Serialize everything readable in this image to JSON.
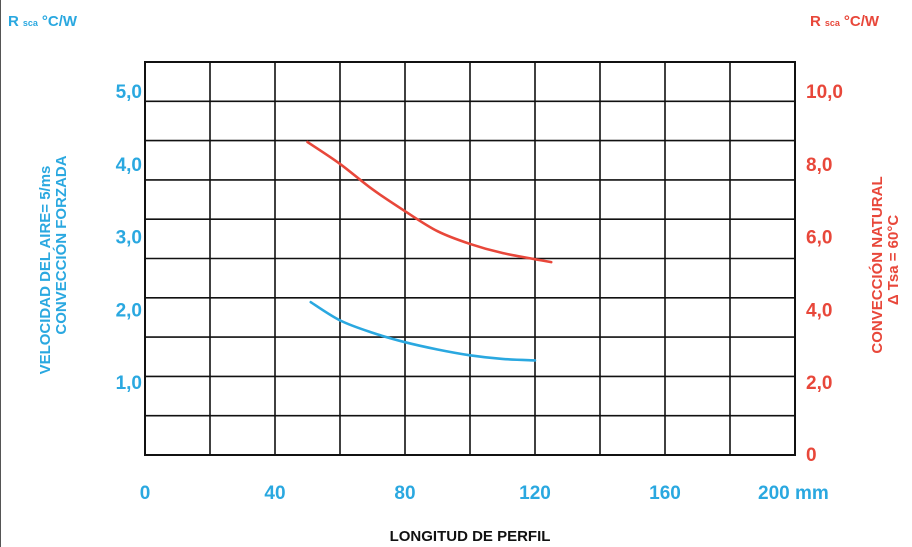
{
  "chart_data": {
    "type": "line",
    "left_axis": {
      "title_r": "R",
      "title_sub": "sca",
      "title_unit": "°C/W",
      "tick_labels": [
        "5,0",
        "4,0",
        "3,0",
        "2,0",
        "1,0"
      ],
      "label_line1": "VELOCIDAD DEL AIRE= 5/ms",
      "label_line2": "CONVECCIÓN FORZADA",
      "color": "#2aa8e0"
    },
    "right_axis": {
      "title_r": "R",
      "title_sub": "sca",
      "title_unit": "°C/W",
      "tick_labels": [
        "10,0",
        "8,0",
        "6,0",
        "4,0",
        "2,0",
        "0"
      ],
      "label_line1": "CONVECCIÓN NATURAL",
      "label_line2": "Δ Tsa = 60°C",
      "color": "#e8473a"
    },
    "x_axis": {
      "tick_labels": [
        "0",
        "40",
        "80",
        "120",
        "160",
        "200 mm"
      ],
      "label": "LONGITUD DE PERFIL",
      "range": [
        0,
        200
      ]
    },
    "y_range_left": [
      0,
      5.4
    ],
    "y_range_right": [
      0,
      10.8
    ],
    "series": [
      {
        "axis": "left",
        "color": "#2aa8e0",
        "x": [
          51,
          60,
          70,
          80,
          90,
          100,
          110,
          120
        ],
        "y": [
          2.1,
          1.85,
          1.68,
          1.55,
          1.45,
          1.37,
          1.32,
          1.3
        ]
      },
      {
        "axis": "right",
        "color": "#e8473a",
        "x": [
          50,
          60,
          70,
          80,
          90,
          100,
          110,
          125
        ],
        "y": [
          8.6,
          8.0,
          7.3,
          6.7,
          6.15,
          5.8,
          5.55,
          5.3
        ]
      }
    ],
    "grid": true
  }
}
